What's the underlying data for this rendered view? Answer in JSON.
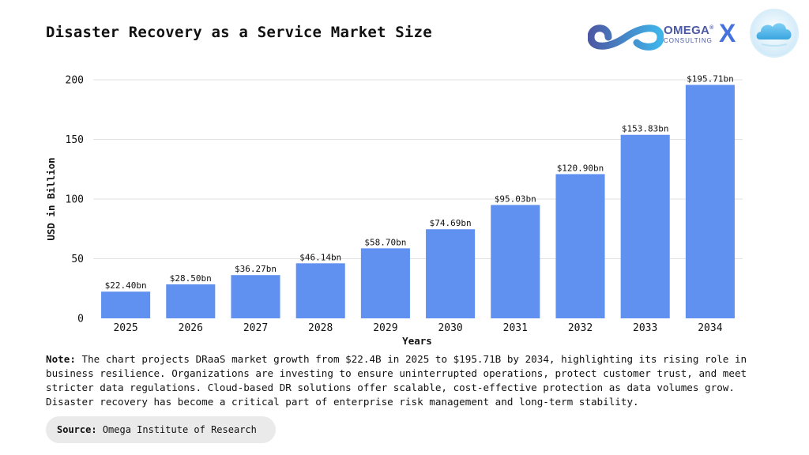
{
  "header": {
    "title": "Disaster Recovery as a Service Market Size",
    "logo_brand": "OMEGA",
    "logo_reg": "®",
    "logo_sub": "CONSULTING",
    "logo_x": "X"
  },
  "colors": {
    "bar": "#6090f0",
    "grid": "#e2e2e2",
    "logo_blue": "#4c5aa5",
    "logo_accent": "#4672e0",
    "source_bg": "#eaeaea"
  },
  "chart_data": {
    "type": "bar",
    "categories": [
      "2025",
      "2026",
      "2027",
      "2028",
      "2029",
      "2030",
      "2031",
      "2032",
      "2033",
      "2034"
    ],
    "values": [
      22.4,
      28.5,
      36.27,
      46.14,
      58.7,
      74.69,
      95.03,
      120.9,
      153.83,
      195.71
    ],
    "data_labels": [
      "$22.40bn",
      "$28.50bn",
      "$36.27bn",
      "$46.14bn",
      "$58.70bn",
      "$74.69bn",
      "$95.03bn",
      "$120.90bn",
      "$153.83bn",
      "$195.71bn"
    ],
    "title": "Disaster Recovery as a Service Market Size",
    "xlabel": "Years",
    "ylabel": "USD in Billion",
    "ylim": [
      0,
      200
    ],
    "yticks": [
      0,
      50,
      100,
      150,
      200
    ],
    "grid": true,
    "legend": "none"
  },
  "footer": {
    "note_label": "Note:",
    "note_text": "The chart projects DRaaS market growth from $22.4B in 2025 to $195.71B by 2034, highlighting its rising role in business resilience. Organizations are investing to ensure uninterrupted operations, protect customer trust, and meet stricter data regulations. Cloud-based DR solutions offer scalable, cost-effective protection as data volumes grow. Disaster recovery has become a critical part of enterprise risk management and long-term stability.",
    "source_label": "Source:",
    "source_text": "Omega Institute of Research"
  }
}
